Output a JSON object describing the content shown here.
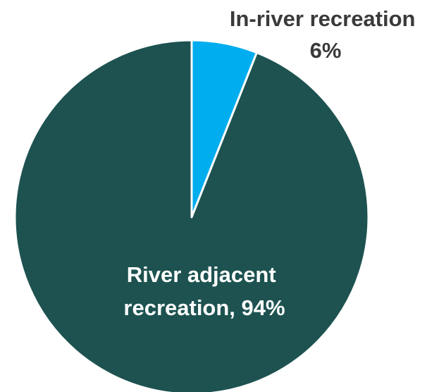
{
  "chart_data": {
    "type": "pie",
    "title": "",
    "slices": [
      {
        "label_lines": [
          "In-river recreation",
          "6%"
        ],
        "value": 6,
        "color": "#00adef",
        "label_placement": "outside-top-right"
      },
      {
        "label_lines": [
          "River adjacent",
          "recreation, 94%"
        ],
        "value": 94,
        "color": "#1d5250",
        "label_placement": "inside"
      }
    ],
    "start_angle": "12 o'clock",
    "direction": "clockwise",
    "slice_border_color": "#ffffff",
    "legend": "none"
  }
}
